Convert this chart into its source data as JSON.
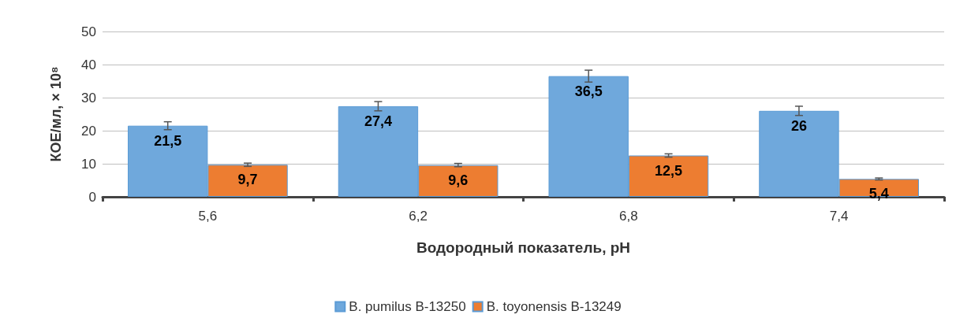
{
  "chart_data": {
    "type": "bar",
    "xlabel": "Водородный показатель, pH",
    "ylabel": "КОЕ/мл, × 10⁸",
    "categories": [
      "5,6",
      "6,2",
      "6,8",
      "7,4"
    ],
    "series": [
      {
        "name": "B. pumilus B-13250",
        "color": "#6fa8dc",
        "values": [
          21.5,
          27.4,
          36.5,
          26
        ],
        "value_labels": [
          "21,5",
          "27,4",
          "36,5",
          "26"
        ],
        "errors": [
          1.2,
          1.4,
          1.8,
          1.4
        ]
      },
      {
        "name": "B. toyonensis B-13249",
        "color": "#ed7d31",
        "values": [
          9.7,
          9.6,
          12.5,
          5.4
        ],
        "value_labels": [
          "9,7",
          "9,6",
          "12,5",
          "5,4"
        ],
        "errors": [
          0.5,
          0.5,
          0.5,
          0.3
        ]
      }
    ],
    "ylim": [
      0,
      50
    ],
    "yticks": [
      0,
      10,
      20,
      30,
      40,
      50
    ],
    "grid": "y",
    "legend": "bottom"
  }
}
